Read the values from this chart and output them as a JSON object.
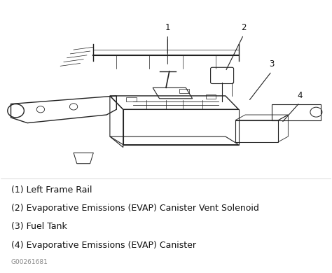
{
  "bg_color": "#ffffff",
  "fig_width": 4.74,
  "fig_height": 3.9,
  "dpi": 100,
  "legend_items": [
    "(1) Left Frame Rail",
    "(2) Evaporative Emissions (EVAP) Canister Vent Solenoid",
    "(3) Fuel Tank",
    "(4) Evaporative Emissions (EVAP) Canister"
  ],
  "footer_text": "G00261681",
  "footer_fontsize": 6.5,
  "legend_fontsize": 9.0,
  "callout_fontsize": 8.5,
  "line_color": "#222222",
  "text_color": "#111111"
}
